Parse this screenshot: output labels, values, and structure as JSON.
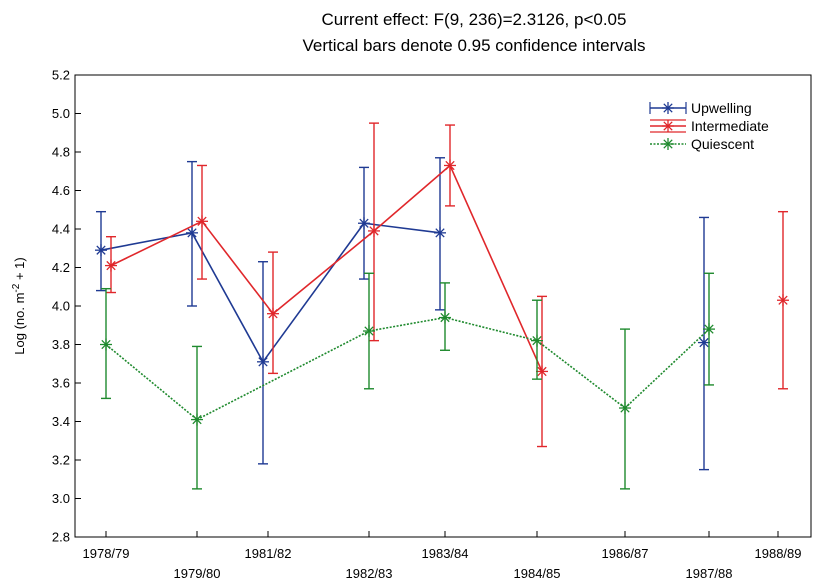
{
  "chart_data": {
    "type": "line",
    "title_lines": [
      "Current effect: F(9, 236)=2.3126, p<0.05",
      "Vertical bars denote 0.95 confidence intervals"
    ],
    "ylabel": {
      "pre": "Log (no. m",
      "sup": "-2",
      "post": " + 1)"
    },
    "xlabel": "",
    "ylim": [
      2.8,
      5.2
    ],
    "yticks": [
      "2.8",
      "3.0",
      "3.2",
      "3.4",
      "3.6",
      "3.8",
      "4.0",
      "4.2",
      "4.4",
      "4.6",
      "4.8",
      "5.0",
      "5.2"
    ],
    "categories": [
      "1978/79",
      "1979/80",
      "1981/82",
      "1982/83",
      "1983/84",
      "1984/85",
      "1986/87",
      "1987/88",
      "1988/89"
    ],
    "grid": false,
    "legend_position": "top-right",
    "series": [
      {
        "name": "Upwelling",
        "color": "#1f3a93",
        "line_style": "solid",
        "points": [
          {
            "category": "1978/79",
            "mean": 4.29,
            "low": 4.08,
            "high": 4.49
          },
          {
            "category": "1979/80",
            "mean": 4.38,
            "low": 4.0,
            "high": 4.75
          },
          {
            "category": "1981/82",
            "mean": 3.71,
            "low": 3.18,
            "high": 4.23
          },
          {
            "category": "1982/83",
            "mean": 4.43,
            "low": 4.14,
            "high": 4.72
          },
          {
            "category": "1983/84",
            "mean": 4.38,
            "low": 3.98,
            "high": 4.77
          },
          {
            "category": "1987/88",
            "mean": 3.81,
            "low": 3.15,
            "high": 4.46
          }
        ]
      },
      {
        "name": "Intermediate",
        "color": "#e0272b",
        "line_style": "solid",
        "points": [
          {
            "category": "1978/79",
            "mean": 4.21,
            "low": 4.07,
            "high": 4.36
          },
          {
            "category": "1979/80",
            "mean": 4.44,
            "low": 4.14,
            "high": 4.73
          },
          {
            "category": "1981/82",
            "mean": 3.96,
            "low": 3.65,
            "high": 4.28
          },
          {
            "category": "1982/83",
            "mean": 4.39,
            "low": 3.82,
            "high": 4.95
          },
          {
            "category": "1983/84",
            "mean": 4.73,
            "low": 4.52,
            "high": 4.94
          },
          {
            "category": "1984/85",
            "mean": 3.66,
            "low": 3.27,
            "high": 4.05
          },
          {
            "category": "1988/89",
            "mean": 4.03,
            "low": 3.57,
            "high": 4.49
          }
        ]
      },
      {
        "name": "Quiescent",
        "color": "#1f8a2e",
        "line_style": "dotted",
        "points": [
          {
            "category": "1978/79",
            "mean": 3.8,
            "low": 3.52,
            "high": 4.09
          },
          {
            "category": "1979/80",
            "mean": 3.41,
            "low": 3.05,
            "high": 3.79
          },
          {
            "category": "1982/83",
            "mean": 3.87,
            "low": 3.57,
            "high": 4.17
          },
          {
            "category": "1983/84",
            "mean": 3.94,
            "low": 3.77,
            "high": 4.12
          },
          {
            "category": "1984/85",
            "mean": 3.82,
            "low": 3.62,
            "high": 4.03
          },
          {
            "category": "1986/87",
            "mean": 3.47,
            "low": 3.05,
            "high": 3.88
          },
          {
            "category": "1987/88",
            "mean": 3.88,
            "low": 3.59,
            "high": 4.17
          }
        ]
      }
    ]
  }
}
